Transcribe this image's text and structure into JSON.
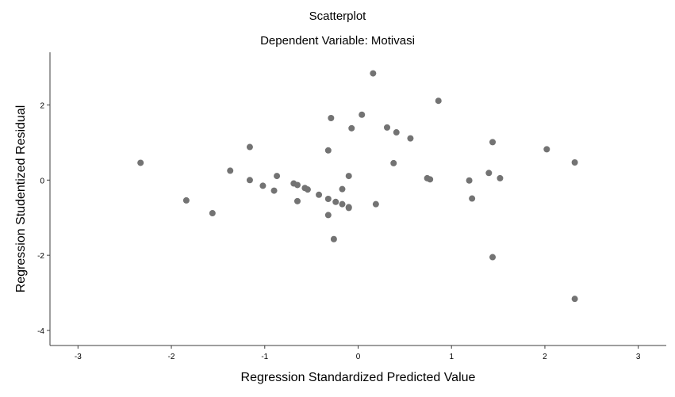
{
  "chart_data": {
    "type": "scatter",
    "title": "Scatterplot",
    "subtitle": "Dependent Variable: Motivasi",
    "xlabel": "Regression Standardized Predicted Value",
    "ylabel": "Regression Studentized Residual",
    "xlim": [
      -3.3,
      3.3
    ],
    "ylim": [
      -4.4,
      3.4
    ],
    "xticks": [
      -3,
      -2,
      -1,
      0,
      1,
      2,
      3
    ],
    "yticks": [
      2,
      0,
      -2,
      -4
    ],
    "xtick_labels": [
      "-3",
      "-2",
      "-1",
      "0",
      "1",
      "2",
      "3"
    ],
    "ytick_labels": [
      "2",
      "0",
      "-2",
      "-4"
    ],
    "grid": false,
    "point_color": "#737373",
    "points": [
      {
        "x": -2.33,
        "y": 0.46
      },
      {
        "x": -1.84,
        "y": -0.54
      },
      {
        "x": -1.56,
        "y": -0.88
      },
      {
        "x": -1.37,
        "y": 0.25
      },
      {
        "x": -1.16,
        "y": 0.88
      },
      {
        "x": -1.16,
        "y": 0.0
      },
      {
        "x": -1.02,
        "y": -0.15
      },
      {
        "x": -0.9,
        "y": -0.28
      },
      {
        "x": -0.87,
        "y": 0.11
      },
      {
        "x": -0.69,
        "y": -0.09
      },
      {
        "x": -0.65,
        "y": -0.13
      },
      {
        "x": -0.65,
        "y": -0.56
      },
      {
        "x": -0.57,
        "y": -0.21
      },
      {
        "x": -0.54,
        "y": -0.25
      },
      {
        "x": -0.42,
        "y": -0.39
      },
      {
        "x": -0.32,
        "y": 0.79
      },
      {
        "x": -0.32,
        "y": -0.5
      },
      {
        "x": -0.32,
        "y": -0.93
      },
      {
        "x": -0.29,
        "y": 1.65
      },
      {
        "x": -0.26,
        "y": -1.57
      },
      {
        "x": -0.24,
        "y": -0.58
      },
      {
        "x": -0.17,
        "y": -0.24
      },
      {
        "x": -0.17,
        "y": -0.64
      },
      {
        "x": -0.1,
        "y": -0.72
      },
      {
        "x": -0.1,
        "y": -0.74
      },
      {
        "x": -0.1,
        "y": 0.11
      },
      {
        "x": -0.07,
        "y": 1.38
      },
      {
        "x": 0.04,
        "y": 1.74
      },
      {
        "x": 0.16,
        "y": 2.84
      },
      {
        "x": 0.19,
        "y": -0.64
      },
      {
        "x": 0.31,
        "y": 1.4
      },
      {
        "x": 0.38,
        "y": 0.45
      },
      {
        "x": 0.41,
        "y": 1.27
      },
      {
        "x": 0.56,
        "y": 1.11
      },
      {
        "x": 0.74,
        "y": 0.05
      },
      {
        "x": 0.77,
        "y": 0.02
      },
      {
        "x": 0.86,
        "y": 2.11
      },
      {
        "x": 1.19,
        "y": -0.01
      },
      {
        "x": 1.22,
        "y": -0.49
      },
      {
        "x": 1.4,
        "y": 0.19
      },
      {
        "x": 1.44,
        "y": 1.01
      },
      {
        "x": 1.44,
        "y": -2.05
      },
      {
        "x": 1.52,
        "y": 0.05
      },
      {
        "x": 2.02,
        "y": 0.82
      },
      {
        "x": 2.32,
        "y": 0.47
      },
      {
        "x": 2.32,
        "y": -3.16
      }
    ]
  }
}
